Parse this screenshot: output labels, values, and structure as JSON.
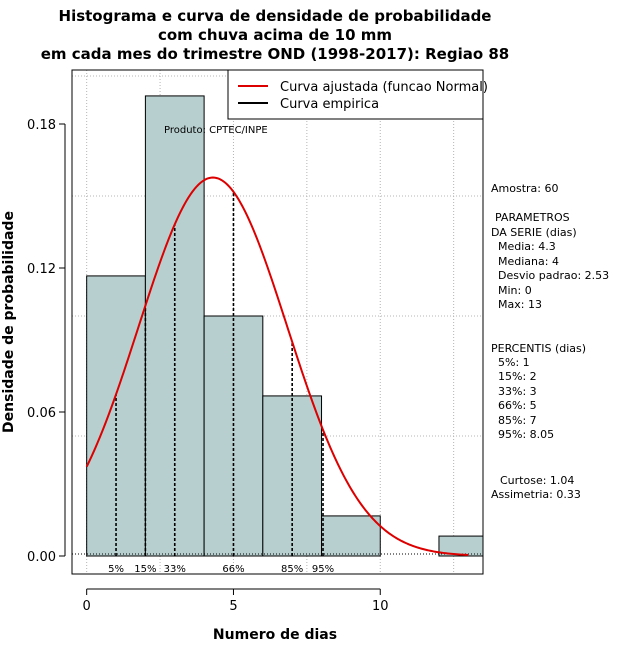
{
  "chart_data": {
    "type": "bar",
    "title_lines": [
      "Histograma e curva de densidade de probabilidade",
      "com chuva acima de 10 mm",
      "em cada mes do trimestre OND (1998-2017): Regiao 88"
    ],
    "xlabel": "Numero de dias",
    "ylabel": "Densidade de probabilidade",
    "xlim": [
      -0.5,
      13.5
    ],
    "ylim": [
      -0.0075,
      0.2025
    ],
    "xticks": [
      0,
      5,
      10
    ],
    "yticks": [
      0.0,
      0.06,
      0.12,
      0.18
    ],
    "ytick_labels": [
      "0.00",
      "0.06",
      "0.12",
      "0.18"
    ],
    "bins": [
      {
        "from": 0,
        "to": 2,
        "density": 0.1167
      },
      {
        "from": 2,
        "to": 4,
        "density": 0.1917
      },
      {
        "from": 4,
        "to": 6,
        "density": 0.1
      },
      {
        "from": 6,
        "to": 8,
        "density": 0.0667
      },
      {
        "from": 8,
        "to": 10,
        "density": 0.0167
      },
      {
        "from": 10,
        "to": 12,
        "density": 0.0
      },
      {
        "from": 12,
        "to": 14,
        "density": 0.0083
      }
    ],
    "bar_color": "#b8cfcf",
    "curve_color": "#dd0000",
    "normal_fit": {
      "mean": 4.3,
      "sd": 2.53,
      "x_from": 0,
      "x_to": 13
    },
    "percentile_lines": [
      {
        "label": "5%",
        "x": 1
      },
      {
        "label": "15%",
        "x": 2
      },
      {
        "label": "33%",
        "x": 3
      },
      {
        "label": "66%",
        "x": 5
      },
      {
        "label": "85%",
        "x": 7
      },
      {
        "label": "95%",
        "x": 8.05
      }
    ],
    "legend": [
      {
        "label": "Curva ajustada (funcao Normal)",
        "color": "#dd0000"
      },
      {
        "label": "Curva empirica",
        "color": "#000000"
      }
    ],
    "legend_position": "top-right",
    "product_label": "Produto: CPTEC/INPE",
    "grid": true
  },
  "stats_panel": {
    "sample": "Amostra: 60",
    "params_header_1": "PARAMETROS",
    "params_header_2": "DA SERIE (dias)",
    "media": "Media: 4.3",
    "mediana": "Mediana: 4",
    "desvio": "Desvio padrao: 2.53",
    "min": "Min: 0",
    "max": "Max: 13",
    "percentis_header": "PERCENTIS (dias)",
    "p5": "5%: 1",
    "p15": "15%: 2",
    "p33": "33%: 3",
    "p66": "66%: 5",
    "p85": "85%: 7",
    "p95": "95%: 8.05",
    "curtose": "Curtose: 1.04",
    "assimetria": "Assimetria: 0.33"
  }
}
